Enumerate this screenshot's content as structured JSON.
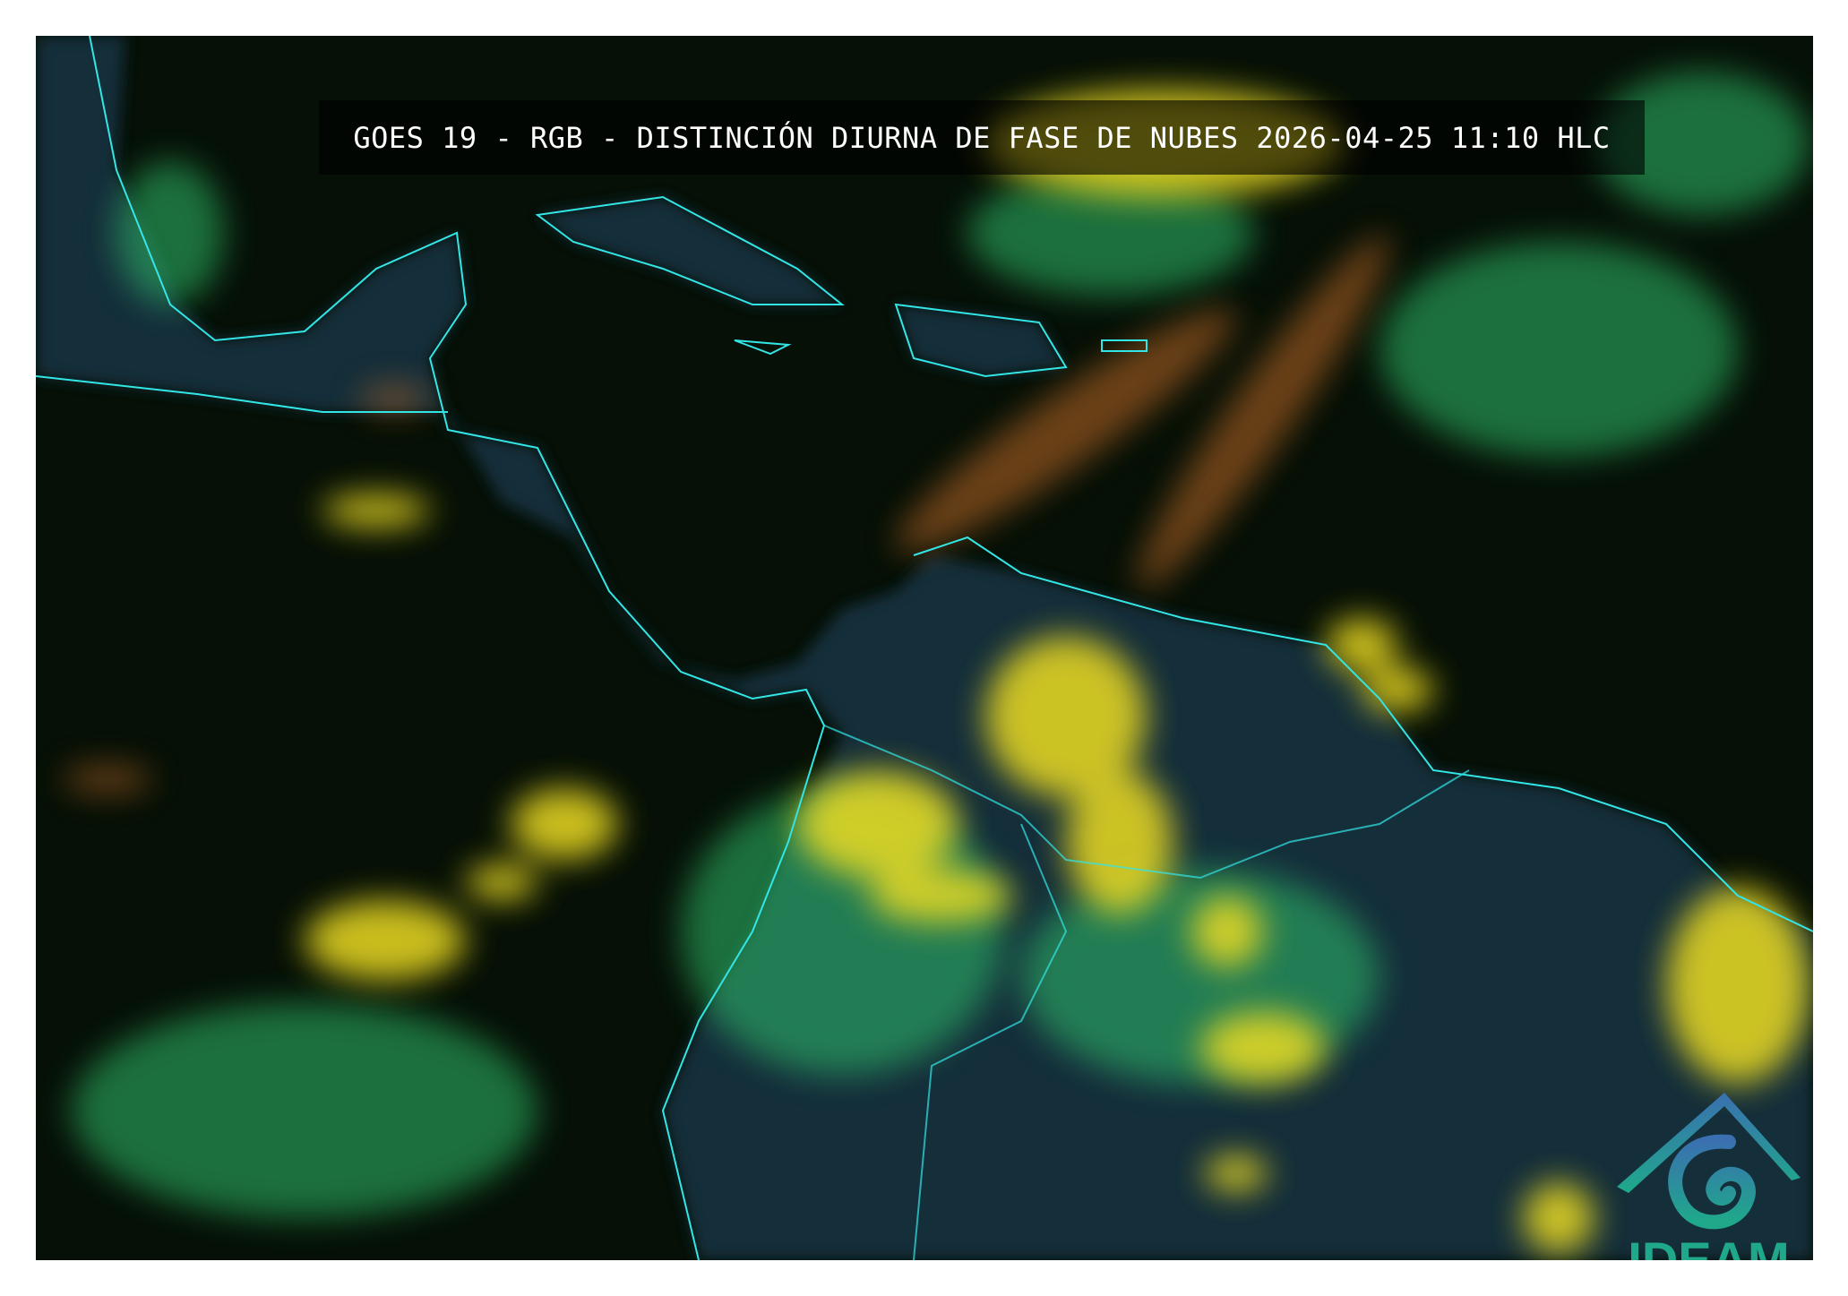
{
  "title": "GOES 19 - RGB - DISTINCIÓN DIURNA DE FASE DE NUBES 2026-04-25 11:10 HLC",
  "logo": {
    "text": "IDEAM"
  },
  "colors": {
    "background": "#061006",
    "coastline": "#33e6e6",
    "ice_clouds": "#e8e020",
    "water_clouds": "#40d080",
    "cirrus": "#d07030",
    "land": "#1a3a50"
  }
}
